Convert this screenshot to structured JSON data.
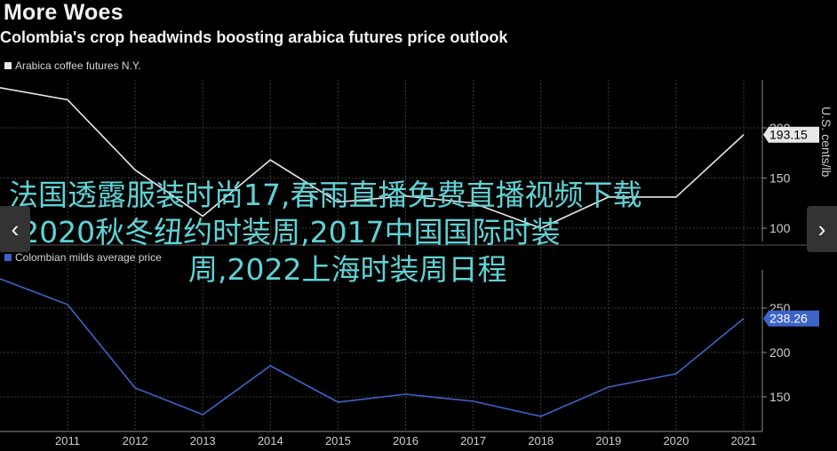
{
  "header": {
    "title": "More Woes",
    "subtitle": "Colombia's crop headwinds boosting arabica futures price outlook"
  },
  "overlay": {
    "line1": "法国透露服装时尚17,春雨直播免费直播视频下载",
    "line2": ";2020秋冬纽约时装周,2017中国国际时装",
    "line3": "周,2022上海时装周日程",
    "color": "#5fd3d6"
  },
  "nav": {
    "prev_icon": "chevron-left-icon",
    "next_icon": "chevron-right-icon",
    "prev_glyph": "‹",
    "next_glyph": "›"
  },
  "chart_data": [
    {
      "type": "line",
      "legend": "Arabica coffee futures N.Y.",
      "color": "#e8e8e8",
      "ylabel": "U.S. cents/lb",
      "ylim": [
        85,
        235
      ],
      "yticks": [
        "100",
        "150",
        "200"
      ],
      "x": [
        2010,
        2011,
        2012,
        2013,
        2014,
        2015,
        2016,
        2017,
        2018,
        2019,
        2020,
        2021
      ],
      "values": [
        240,
        228,
        158,
        112,
        168,
        126,
        132,
        125,
        100,
        131,
        131,
        193.15
      ],
      "last_label": "193.15"
    },
    {
      "type": "line",
      "legend": "Colombian milds average price",
      "color": "#3d64c8",
      "ylim": [
        125,
        305
      ],
      "yticks": [
        "150",
        "200",
        "250"
      ],
      "x": [
        2010,
        2011,
        2012,
        2013,
        2014,
        2015,
        2016,
        2017,
        2018,
        2019,
        2020,
        2021
      ],
      "values": [
        283,
        254,
        160,
        130,
        185,
        144,
        153,
        145,
        128,
        161,
        176,
        238.26
      ],
      "last_label": "238.26"
    }
  ],
  "xaxis": {
    "ticks": [
      "2011",
      "2012",
      "2013",
      "2014",
      "2015",
      "2016",
      "2017",
      "2018",
      "2019",
      "2020",
      "2021"
    ]
  }
}
